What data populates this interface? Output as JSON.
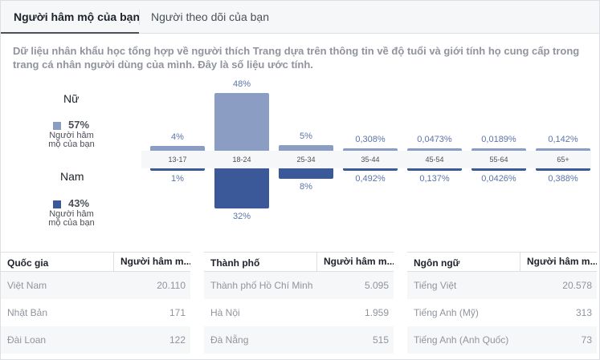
{
  "tabs": [
    {
      "label": "Người hâm mộ của bạn",
      "active": true
    },
    {
      "label": "Người theo dõi của bạn",
      "active": false
    }
  ],
  "description": "Dữ liệu nhân khẩu học tổng hợp về người thích Trang dựa trên thông tin về độ tuổi và giới tính họ cung cấp trong trang cá nhân người dùng của mình. Đây là số liệu ước tính.",
  "gender": {
    "female": {
      "title": "Nữ",
      "percent": "57%",
      "sub_line1": "Người hâm",
      "sub_line2": "mộ của bạn",
      "color": "#8b9dc3"
    },
    "male": {
      "title": "Nam",
      "percent": "43%",
      "sub_line1": "Người hâm",
      "sub_line2": "mộ của bạn",
      "color": "#3b5998"
    }
  },
  "chart_data": {
    "type": "bar",
    "categories": [
      "13-17",
      "18-24",
      "25-34",
      "35-44",
      "45-54",
      "55-64",
      "65+"
    ],
    "series": [
      {
        "name": "Nữ",
        "values": [
          4,
          48,
          5,
          0.308,
          0.0473,
          0.0189,
          0.142
        ],
        "labels": [
          "4%",
          "48%",
          "5%",
          "0,308%",
          "0,0473%",
          "0,0189%",
          "0,142%"
        ]
      },
      {
        "name": "Nam",
        "values": [
          1,
          32,
          8,
          0.492,
          0.137,
          0.0426,
          0.388
        ],
        "labels": [
          "1%",
          "32%",
          "8%",
          "0,492%",
          "0,137%",
          "0,0426%",
          "0,388%"
        ]
      }
    ]
  },
  "tables": [
    {
      "headers": [
        "Quốc gia",
        "Người hâm m..."
      ],
      "rows": [
        [
          "Việt Nam",
          "20.110"
        ],
        [
          "Nhật Bản",
          "171"
        ],
        [
          "Đài Loan",
          "122"
        ]
      ]
    },
    {
      "headers": [
        "Thành phố",
        "Người hâm m..."
      ],
      "rows": [
        [
          "Thành phố Hồ Chí Minh",
          "5.095"
        ],
        [
          "Hà Nội",
          "1.959"
        ],
        [
          "Đà Nẵng",
          "515"
        ]
      ]
    },
    {
      "headers": [
        "Ngôn ngữ",
        "Người hâm m..."
      ],
      "rows": [
        [
          "Tiếng Việt",
          "20.578"
        ],
        [
          "Tiếng Anh (Mỹ)",
          "313"
        ],
        [
          "Tiếng Anh (Anh Quốc)",
          "73"
        ]
      ]
    }
  ]
}
